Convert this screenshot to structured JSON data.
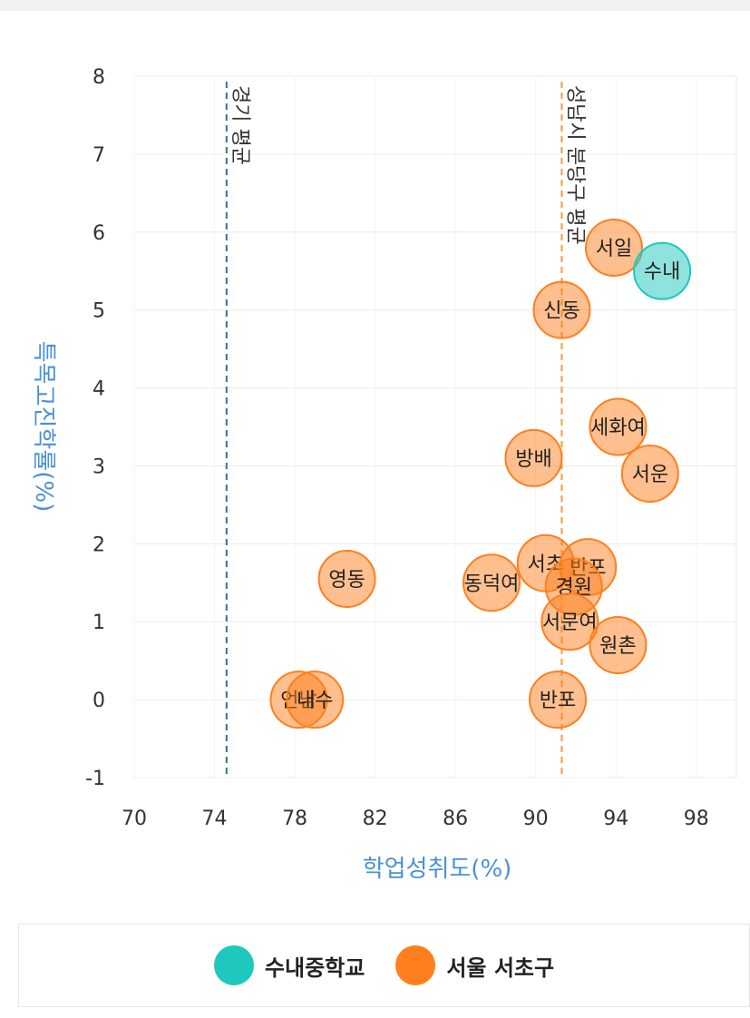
{
  "chart_data": {
    "type": "scatter",
    "title": "",
    "xlabel": "학업성취도(%)",
    "ylabel": "특목고진학률(%)",
    "xlim": [
      70,
      100
    ],
    "ylim": [
      -1,
      8
    ],
    "x_ticks": [
      70,
      74,
      78,
      82,
      86,
      90,
      94,
      98
    ],
    "y_ticks": [
      -1,
      0,
      1,
      2,
      3,
      4,
      5,
      6,
      7,
      8
    ],
    "grid": true,
    "legend_position": "bottom",
    "reference_lines": [
      {
        "name": "경기 평균",
        "x": 74.6,
        "color": "#3a6e9a"
      },
      {
        "name": "성남시 분당구 평균",
        "x": 91.3,
        "color": "#f39c3a"
      }
    ],
    "series": [
      {
        "name": "수내중학교",
        "color": "#1ec8bf",
        "points": [
          {
            "label": "수내",
            "x": 96.3,
            "y": 5.5
          }
        ]
      },
      {
        "name": "서울 서초구",
        "color": "#ff7f1e",
        "points": [
          {
            "label": "서일",
            "x": 93.9,
            "y": 5.8
          },
          {
            "label": "신동",
            "x": 91.3,
            "y": 5.0
          },
          {
            "label": "세화여",
            "x": 94.1,
            "y": 3.5
          },
          {
            "label": "방배",
            "x": 89.9,
            "y": 3.1
          },
          {
            "label": "서운",
            "x": 95.7,
            "y": 2.9
          },
          {
            "label": "서초",
            "x": 90.5,
            "y": 1.75
          },
          {
            "label": "반포",
            "x": 92.6,
            "y": 1.7
          },
          {
            "label": "영동",
            "x": 80.6,
            "y": 1.55
          },
          {
            "label": "동덕여",
            "x": 87.8,
            "y": 1.5
          },
          {
            "label": "경원",
            "x": 91.9,
            "y": 1.45
          },
          {
            "label": "서문여",
            "x": 91.7,
            "y": 1.0
          },
          {
            "label": "원촌",
            "x": 94.1,
            "y": 0.7
          },
          {
            "label": "언남",
            "x": 78.2,
            "y": 0.0
          },
          {
            "label": "내수",
            "x": 79.0,
            "y": 0.0
          },
          {
            "label": "반포",
            "x": 91.1,
            "y": 0.0
          }
        ]
      }
    ]
  }
}
